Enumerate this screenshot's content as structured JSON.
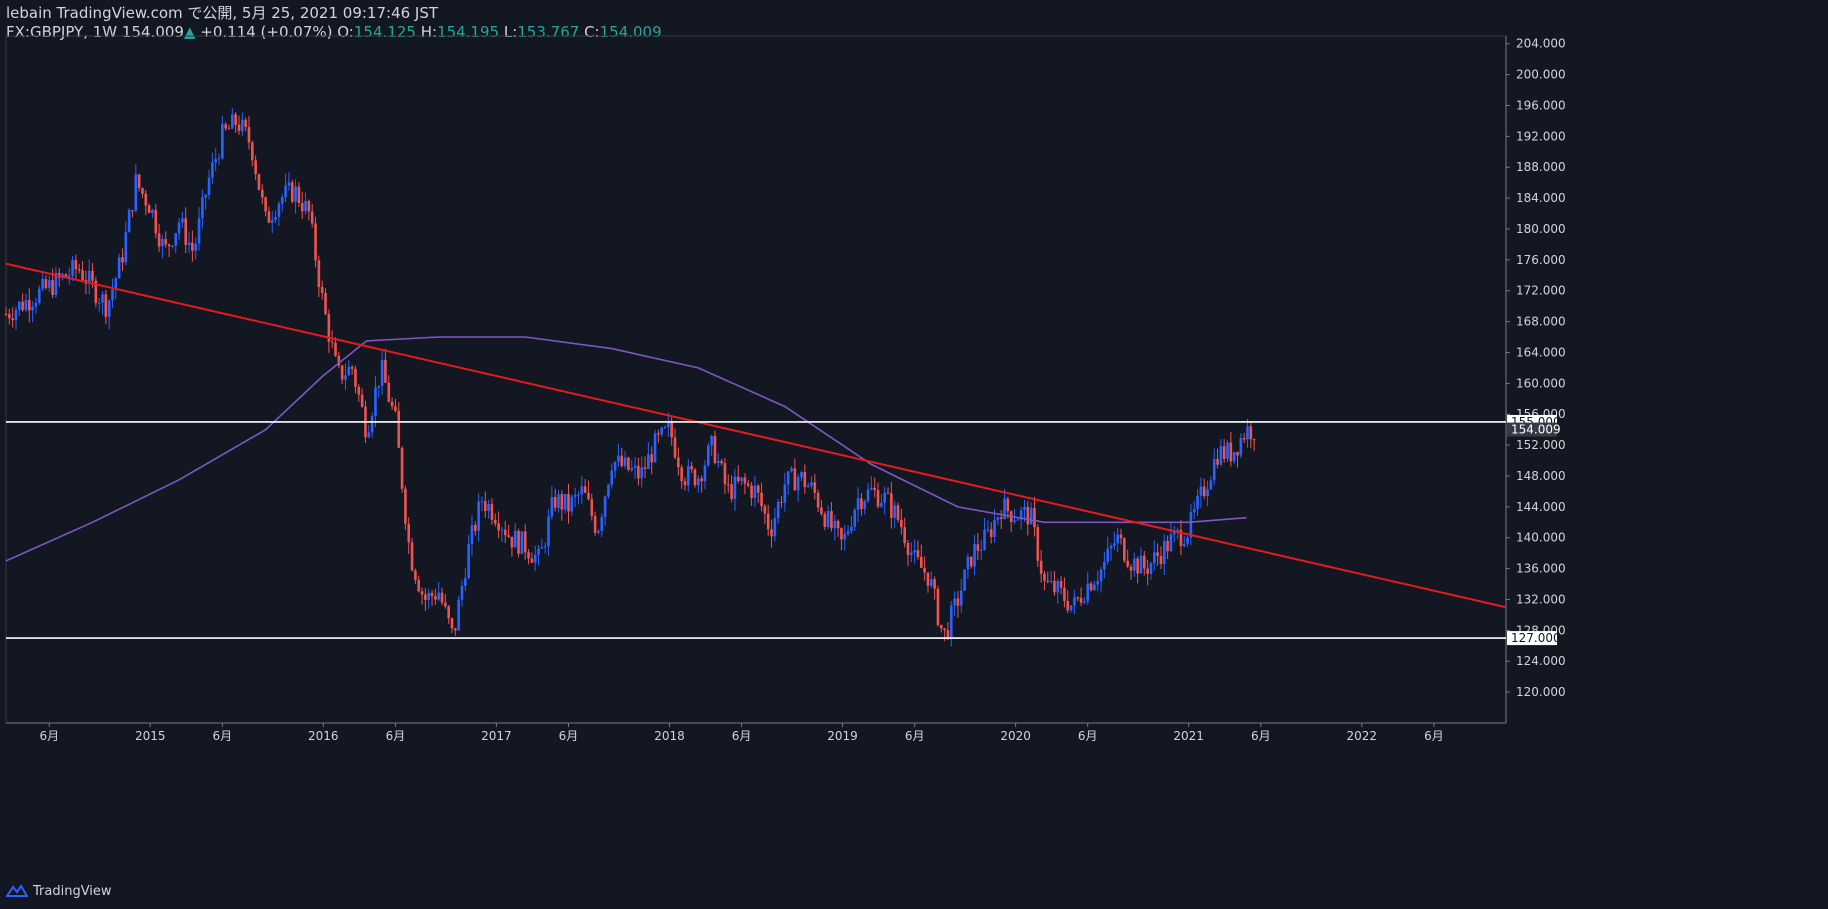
{
  "header": {
    "publisher": "lebain TradingView.com で公開, 5月 25, 2021 09:17:46 JST",
    "symbol": "FX:GBPJPY, 1W",
    "last": "154.009",
    "change": "+0.114 (+0.07%)",
    "o_label": "O:",
    "o_value": "154.125",
    "h_label": "H:",
    "h_value": "154.195",
    "l_label": "L:",
    "l_value": "153.767",
    "c_label": "C:",
    "c_value": "154.009"
  },
  "brand": {
    "name": "TradingView"
  },
  "chart_data": {
    "type": "candlestick",
    "symbol": "GBPJPY",
    "interval": "1W",
    "ylim": [
      116,
      205
    ],
    "y_ticks": [
      "204.000",
      "200.000",
      "196.000",
      "192.000",
      "188.000",
      "184.000",
      "180.000",
      "176.000",
      "172.000",
      "168.000",
      "164.000",
      "160.000",
      "156.000",
      "152.000",
      "148.000",
      "144.000",
      "140.000",
      "136.000",
      "132.000",
      "128.000",
      "124.000",
      "120.000"
    ],
    "x_ticks": [
      {
        "label": "6月",
        "date": "2014-06"
      },
      {
        "label": "2015",
        "date": "2015-01"
      },
      {
        "label": "6月",
        "date": "2015-06"
      },
      {
        "label": "2016",
        "date": "2016-01"
      },
      {
        "label": "6月",
        "date": "2016-06"
      },
      {
        "label": "2017",
        "date": "2017-01"
      },
      {
        "label": "6月",
        "date": "2017-06"
      },
      {
        "label": "2018",
        "date": "2018-01"
      },
      {
        "label": "6月",
        "date": "2018-06"
      },
      {
        "label": "2019",
        "date": "2019-01"
      },
      {
        "label": "6月",
        "date": "2019-06"
      },
      {
        "label": "2020",
        "date": "2020-01"
      },
      {
        "label": "6月",
        "date": "2020-06"
      },
      {
        "label": "2021",
        "date": "2021-01"
      },
      {
        "label": "6月",
        "date": "2021-06"
      },
      {
        "label": "2022",
        "date": "2022-01"
      },
      {
        "label": "6月",
        "date": "2022-06"
      }
    ],
    "x_range": [
      "2014-03",
      "2022-11"
    ],
    "price_path": [
      [
        "2014-03",
        169
      ],
      [
        "2014-06",
        172.5
      ],
      [
        "2014-08",
        175
      ],
      [
        "2014-10",
        170
      ],
      [
        "2014-11",
        176
      ],
      [
        "2014-12",
        186
      ],
      [
        "2015-01",
        183
      ],
      [
        "2015-02",
        177
      ],
      [
        "2015-03",
        181
      ],
      [
        "2015-04",
        177
      ],
      [
        "2015-05",
        186
      ],
      [
        "2015-06",
        192
      ],
      [
        "2015-07",
        194
      ],
      [
        "2015-08",
        191
      ],
      [
        "2015-09",
        181
      ],
      [
        "2015-10",
        184
      ],
      [
        "2015-11",
        185
      ],
      [
        "2015-12",
        182
      ],
      [
        "2016-01",
        170
      ],
      [
        "2016-02",
        161
      ],
      [
        "2016-03",
        162
      ],
      [
        "2016-04",
        154
      ],
      [
        "2016-05",
        162
      ],
      [
        "2016-06",
        155
      ],
      [
        "2016-07",
        138
      ],
      [
        "2016-08",
        132
      ],
      [
        "2016-09",
        133
      ],
      [
        "2016-10",
        127
      ],
      [
        "2016-11",
        138
      ],
      [
        "2016-12",
        145
      ],
      [
        "2017-01",
        143
      ],
      [
        "2017-02",
        140
      ],
      [
        "2017-03",
        139
      ],
      [
        "2017-04",
        137
      ],
      [
        "2017-05",
        145
      ],
      [
        "2017-06",
        144
      ],
      [
        "2017-07",
        146
      ],
      [
        "2017-08",
        141
      ],
      [
        "2017-09",
        150
      ],
      [
        "2017-10",
        149
      ],
      [
        "2017-11",
        148
      ],
      [
        "2017-12",
        152
      ],
      [
        "2018-01",
        154
      ],
      [
        "2018-02",
        148
      ],
      [
        "2018-03",
        148
      ],
      [
        "2018-04",
        152
      ],
      [
        "2018-05",
        146
      ],
      [
        "2018-06",
        147
      ],
      [
        "2018-07",
        146
      ],
      [
        "2018-08",
        141
      ],
      [
        "2018-09",
        147
      ],
      [
        "2018-10",
        148
      ],
      [
        "2018-11",
        146
      ],
      [
        "2018-12",
        142
      ],
      [
        "2019-01",
        139
      ],
      [
        "2019-02",
        145
      ],
      [
        "2019-03",
        146
      ],
      [
        "2019-04",
        145
      ],
      [
        "2019-05",
        142
      ],
      [
        "2019-06",
        137
      ],
      [
        "2019-07",
        135
      ],
      [
        "2019-08",
        127
      ],
      [
        "2019-09",
        132
      ],
      [
        "2019-10",
        138
      ],
      [
        "2019-11",
        140
      ],
      [
        "2019-12",
        144
      ],
      [
        "2020-01",
        143
      ],
      [
        "2020-02",
        143
      ],
      [
        "2020-03",
        134
      ],
      [
        "2020-04",
        133
      ],
      [
        "2020-05",
        131
      ],
      [
        "2020-06",
        134
      ],
      [
        "2020-07",
        136
      ],
      [
        "2020-08",
        140
      ],
      [
        "2020-09",
        137
      ],
      [
        "2020-10",
        136
      ],
      [
        "2020-11",
        138
      ],
      [
        "2020-12",
        140
      ],
      [
        "2021-01",
        141
      ],
      [
        "2021-02",
        146
      ],
      [
        "2021-03",
        151
      ],
      [
        "2021-04",
        151
      ],
      [
        "2021-05",
        154
      ]
    ],
    "sma": [
      [
        "2014-03",
        137
      ],
      [
        "2014-09",
        142
      ],
      [
        "2015-03",
        147.5
      ],
      [
        "2015-09",
        154
      ],
      [
        "2016-01",
        161
      ],
      [
        "2016-04",
        165.5
      ],
      [
        "2016-09",
        166
      ],
      [
        "2017-03",
        166
      ],
      [
        "2017-09",
        164.5
      ],
      [
        "2018-03",
        162
      ],
      [
        "2018-09",
        157
      ],
      [
        "2019-03",
        149.5
      ],
      [
        "2019-09",
        144
      ],
      [
        "2020-03",
        142
      ],
      [
        "2020-09",
        142
      ],
      [
        "2021-01",
        142
      ],
      [
        "2021-05",
        142.6
      ]
    ],
    "trendline": {
      "start": [
        "2014-03",
        175.5
      ],
      "end": [
        "2022-11",
        131
      ]
    },
    "horizontal_levels": [
      {
        "value": 155.0,
        "label": "155.000"
      },
      {
        "value": 127.0,
        "label": "127.000"
      }
    ],
    "last_price_label": "154.009",
    "colors": {
      "background": "#131722",
      "up": "#2962ff",
      "down": "#ef5350",
      "trendline": "#e31b1b",
      "sma": "#7e57c2",
      "level": "#ffffff",
      "text": "#d1d4dc"
    }
  }
}
